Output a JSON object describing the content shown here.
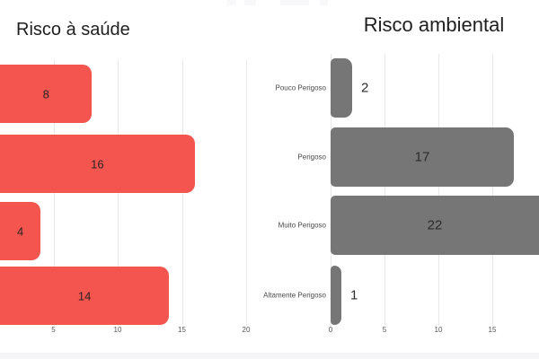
{
  "page": {
    "background_color": "#ffffff",
    "bottom_band_color": "#f5f5f7"
  },
  "chart_data": [
    {
      "type": "bar",
      "orientation": "horizontal",
      "title": "Risco à saúde",
      "categories": [
        "",
        "",
        "",
        ""
      ],
      "values": [
        8,
        16,
        4,
        14
      ],
      "value_labels": [
        "8",
        "16",
        "4",
        "14"
      ],
      "bar_color": "#f4554e",
      "value_label_color": "#2b2526",
      "grid": true,
      "grid_color": "#e8e8e8",
      "xlim": [
        0,
        20
      ],
      "xticks": [
        5,
        10,
        15,
        20
      ],
      "xtick_labels": [
        "5",
        "10",
        "15",
        "20"
      ],
      "note_axis_origin": "category labels and zero axis cropped off left edge of image"
    },
    {
      "type": "bar",
      "orientation": "horizontal",
      "title": "Risco ambiental",
      "categories": [
        "Pouco Perigoso",
        "Perigoso",
        "Muito Perigoso",
        "Altamente Perigoso"
      ],
      "values": [
        2,
        17,
        22,
        1
      ],
      "value_labels": [
        "2",
        "17",
        "22",
        "1"
      ],
      "bar_color": "#767676",
      "value_label_color": "#2b2b2b",
      "grid": true,
      "grid_color": "#e8e8e8",
      "xlim": [
        0,
        22
      ],
      "xticks": [
        0,
        5,
        10,
        15
      ],
      "xtick_labels": [
        "0",
        "5",
        "10",
        "15"
      ]
    }
  ]
}
